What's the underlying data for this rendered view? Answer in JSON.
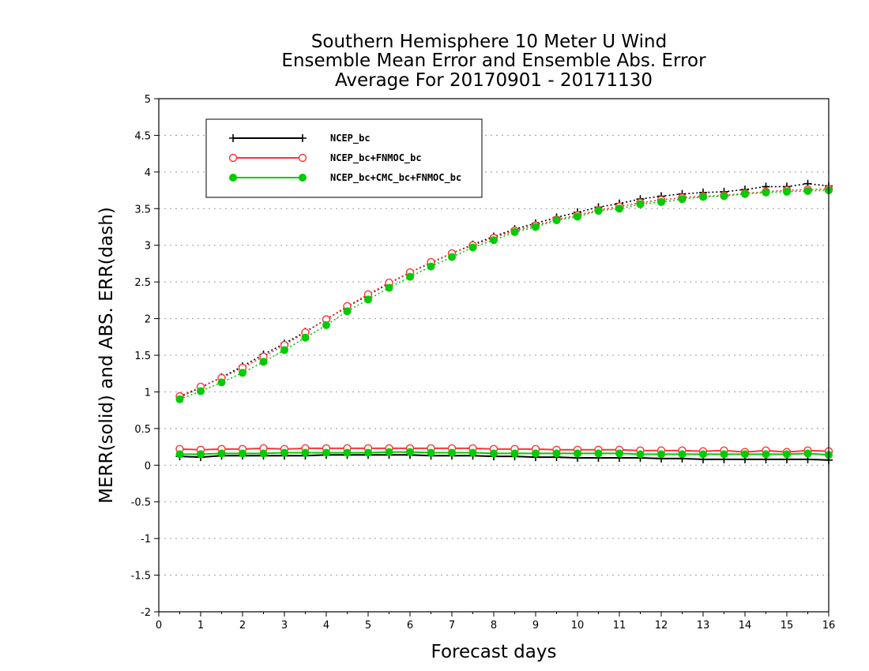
{
  "chart_data": {
    "type": "line",
    "title": [
      "Southern Hemisphere 10 Meter U Wind",
      "Ensemble Mean Error and Ensemble Abs. Error",
      "Average For 20170901 - 20171130"
    ],
    "xlabel": "Forecast days",
    "ylabel": "MERR(solid) and ABS. ERR(dash)",
    "xlim": [
      0,
      16
    ],
    "ylim": [
      -2,
      5
    ],
    "xticks": [
      "0",
      "1",
      "2",
      "3",
      "4",
      "5",
      "6",
      "7",
      "8",
      "9",
      "10",
      "11",
      "12",
      "13",
      "14",
      "15",
      "16"
    ],
    "yticks": [
      "-2",
      "-1.5",
      "-1",
      "-0.5",
      "0",
      "0.5",
      "1",
      "1.5",
      "2",
      "2.5",
      "3",
      "3.5",
      "4",
      "4.5",
      "5"
    ],
    "grid": true,
    "legend_position": "top-left",
    "x": [
      0.5,
      1,
      1.5,
      2,
      2.5,
      3,
      3.5,
      4,
      4.5,
      5,
      5.5,
      6,
      6.5,
      7,
      7.5,
      8,
      8.5,
      9,
      9.5,
      10,
      10.5,
      11,
      11.5,
      12,
      12.5,
      13,
      13.5,
      14,
      14.5,
      15,
      15.5,
      16
    ],
    "series": [
      {
        "name": "NCEP_bc",
        "color": "#000000",
        "marker": "plus",
        "merr": [
          0.12,
          0.11,
          0.13,
          0.13,
          0.13,
          0.13,
          0.13,
          0.14,
          0.14,
          0.14,
          0.14,
          0.14,
          0.13,
          0.13,
          0.13,
          0.12,
          0.12,
          0.11,
          0.11,
          0.1,
          0.1,
          0.1,
          0.1,
          0.09,
          0.09,
          0.08,
          0.08,
          0.08,
          0.08,
          0.08,
          0.08,
          0.07
        ],
        "abs_err": [
          0.93,
          1.06,
          1.2,
          1.35,
          1.51,
          1.66,
          1.82,
          1.99,
          2.16,
          2.32,
          2.48,
          2.63,
          2.76,
          2.89,
          3.01,
          3.12,
          3.22,
          3.3,
          3.38,
          3.45,
          3.52,
          3.57,
          3.63,
          3.67,
          3.7,
          3.72,
          3.73,
          3.76,
          3.8,
          3.8,
          3.84,
          3.81
        ]
      },
      {
        "name": "NCEP_bc+FNMOC_bc",
        "color": "#ff3333",
        "marker": "open-circle",
        "merr": [
          0.22,
          0.21,
          0.22,
          0.22,
          0.23,
          0.22,
          0.23,
          0.23,
          0.23,
          0.23,
          0.23,
          0.23,
          0.23,
          0.23,
          0.23,
          0.22,
          0.22,
          0.22,
          0.21,
          0.21,
          0.21,
          0.21,
          0.2,
          0.2,
          0.2,
          0.19,
          0.2,
          0.18,
          0.2,
          0.18,
          0.2,
          0.19
        ],
        "abs_err": [
          0.94,
          1.07,
          1.19,
          1.33,
          1.48,
          1.64,
          1.81,
          1.99,
          2.17,
          2.33,
          2.49,
          2.63,
          2.77,
          2.89,
          3.0,
          3.1,
          3.2,
          3.27,
          3.35,
          3.41,
          3.48,
          3.53,
          3.58,
          3.62,
          3.65,
          3.67,
          3.68,
          3.71,
          3.73,
          3.75,
          3.76,
          3.77
        ]
      },
      {
        "name": "NCEP_bc+CMC_bc+FNMOC_bc",
        "color": "#00cc00",
        "marker": "filled-circle",
        "merr": [
          0.15,
          0.15,
          0.16,
          0.16,
          0.16,
          0.17,
          0.17,
          0.17,
          0.17,
          0.17,
          0.18,
          0.18,
          0.17,
          0.17,
          0.17,
          0.16,
          0.16,
          0.16,
          0.16,
          0.16,
          0.16,
          0.16,
          0.15,
          0.15,
          0.15,
          0.15,
          0.15,
          0.15,
          0.15,
          0.15,
          0.16,
          0.14
        ],
        "abs_err": [
          0.9,
          1.01,
          1.13,
          1.26,
          1.41,
          1.57,
          1.74,
          1.91,
          2.1,
          2.26,
          2.42,
          2.57,
          2.71,
          2.84,
          2.97,
          3.07,
          3.18,
          3.25,
          3.34,
          3.39,
          3.47,
          3.5,
          3.56,
          3.59,
          3.63,
          3.66,
          3.67,
          3.7,
          3.72,
          3.73,
          3.74,
          3.75
        ]
      }
    ]
  }
}
